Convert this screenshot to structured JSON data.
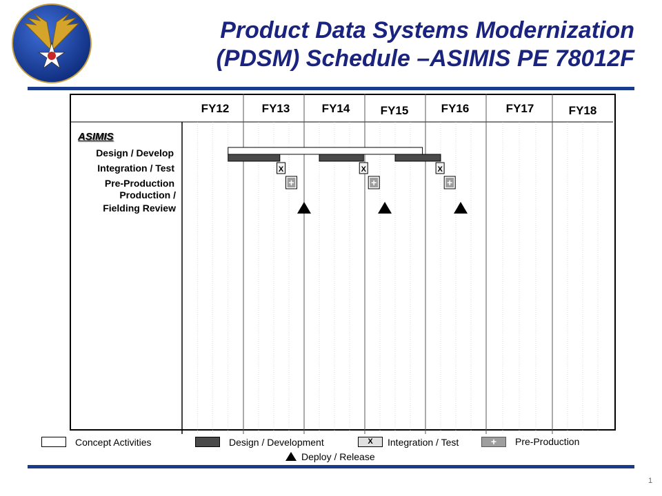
{
  "header": {
    "title_line1": "Product Data Systems Modernization",
    "title_line2": "(PDSM) Schedule –ASIMIS PE 78012F",
    "logo_icon": "air-force-wings-star-icon"
  },
  "colors": {
    "title": "#1a237e",
    "rule": "#1a3a8c",
    "design_bar": "#4a4a4a",
    "preproduction_box": "#9e9e9e"
  },
  "chart_data": {
    "type": "gantt",
    "fiscal_years": [
      "FY12",
      "FY13",
      "FY14",
      "FY15",
      "FY16",
      "FY17",
      "FY18"
    ],
    "program": "ASIMIS",
    "rows": [
      "Design / Develop",
      "Integration / Test",
      "Pre-Production",
      "Production /",
      "Fielding Review"
    ],
    "tasks": [
      {
        "type": "concept",
        "row": "Design / Develop",
        "start": 12.75,
        "end": 15.95
      },
      {
        "type": "design",
        "row": "Design / Develop",
        "start": 12.75,
        "end": 13.6
      },
      {
        "type": "design",
        "row": "Design / Develop",
        "start": 14.25,
        "end": 14.98
      },
      {
        "type": "design",
        "row": "Design / Develop",
        "start": 15.5,
        "end": 16.25
      },
      {
        "type": "integration",
        "row": "Integration / Test",
        "at": 13.62,
        "label": "X"
      },
      {
        "type": "integration",
        "row": "Integration / Test",
        "at": 14.98,
        "label": "X"
      },
      {
        "type": "integration",
        "row": "Integration / Test",
        "at": 16.24,
        "label": "X"
      },
      {
        "type": "preproduction",
        "row": "Pre-Production",
        "at": 13.79,
        "label": "+"
      },
      {
        "type": "preproduction",
        "row": "Pre-Production",
        "at": 15.15,
        "label": "+"
      },
      {
        "type": "preproduction",
        "row": "Pre-Production",
        "at": 16.4,
        "label": "+"
      },
      {
        "type": "deploy",
        "row": "Production / Fielding Review",
        "at": 14.0
      },
      {
        "type": "deploy",
        "row": "Production / Fielding Review",
        "at": 15.33
      },
      {
        "type": "deploy",
        "row": "Production / Fielding Review",
        "at": 16.58
      }
    ]
  },
  "legend": {
    "concept": "Concept Activities",
    "design": "Design / Development",
    "integration": "Integration  / Test",
    "integration_mark": "X",
    "preproduction": "Pre-Production",
    "preproduction_mark": "+",
    "deploy": "Deploy / Release"
  },
  "page_number": "1"
}
